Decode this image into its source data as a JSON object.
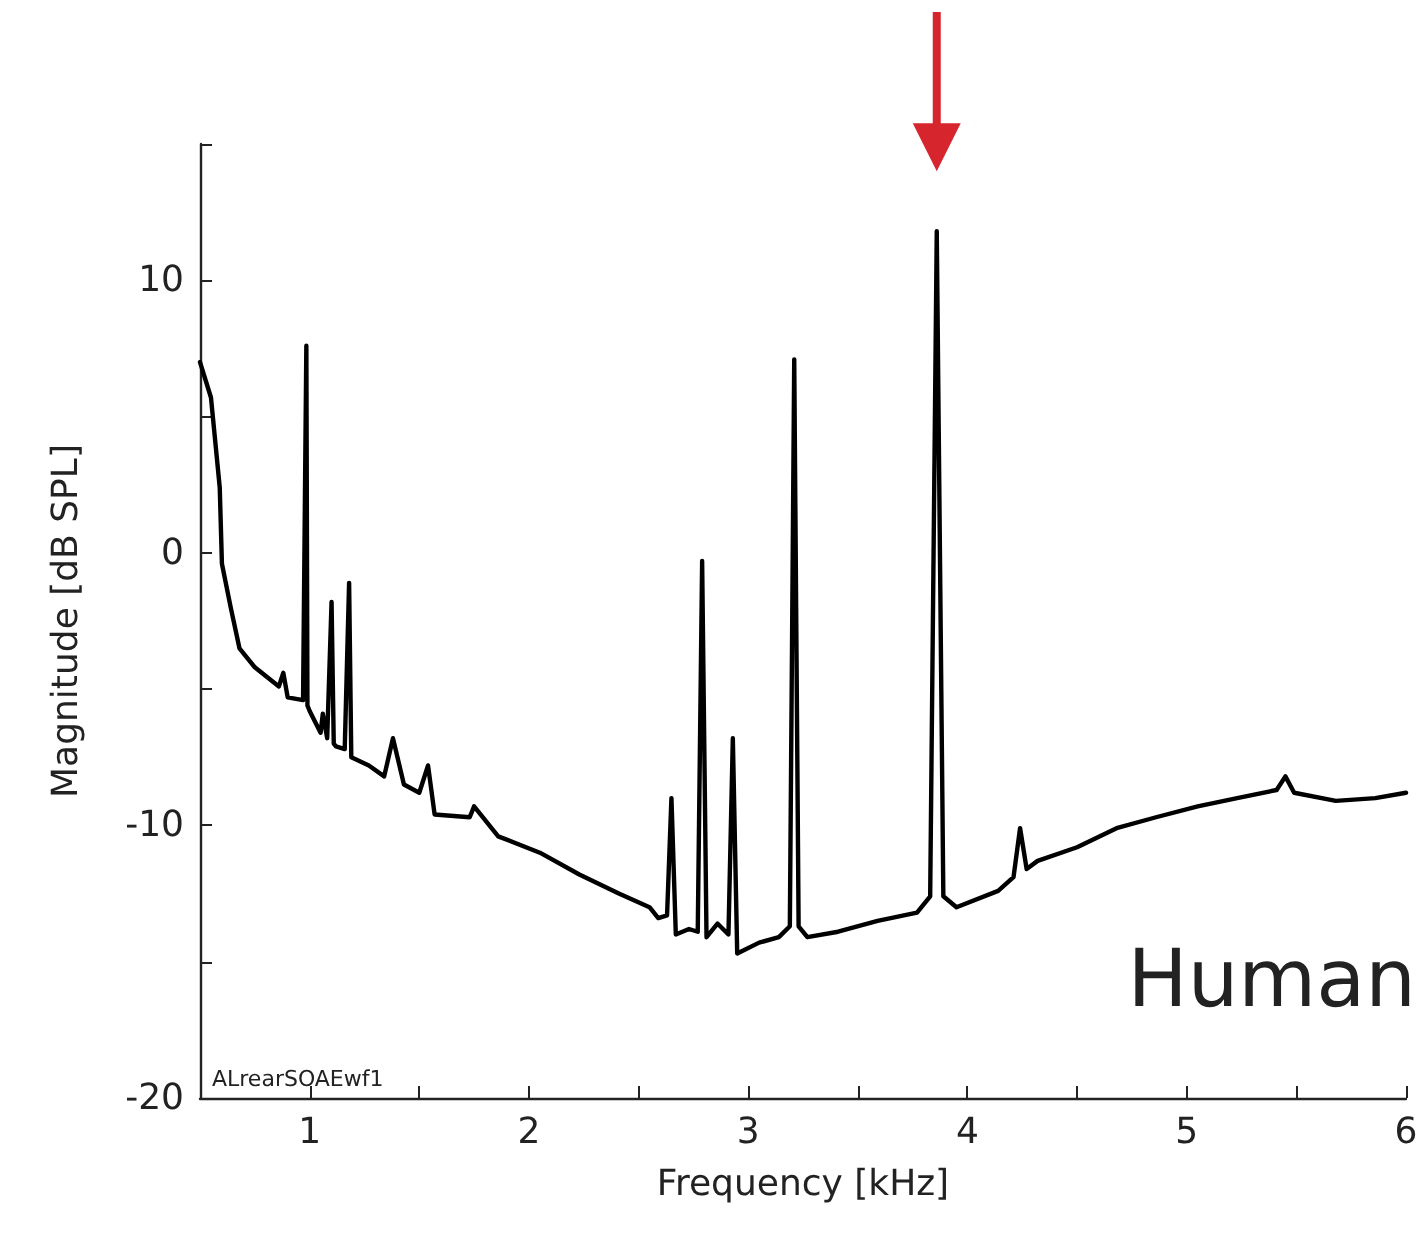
{
  "chart_data": {
    "type": "line",
    "xlabel": "Frequency [kHz]",
    "ylabel": "Magnitude [dB SPL]",
    "annotations": [
      "ALrearSOAEwf1",
      "Human"
    ],
    "xlim": [
      0.5,
      6
    ],
    "ylim": [
      -20,
      15
    ],
    "xticks": [
      1,
      {
        "value": 1.5,
        "label": null
      },
      2,
      {
        "value": 2.5,
        "label": null
      },
      3,
      {
        "value": 3.5,
        "label": null
      },
      4,
      {
        "value": 4.5,
        "label": null
      },
      5,
      {
        "value": 5.5,
        "label": null
      },
      6
    ],
    "yticks": [
      -20,
      {
        "value": -15,
        "label": null
      },
      -10,
      {
        "value": -5,
        "label": null
      },
      0,
      {
        "value": 5,
        "label": null
      },
      10,
      {
        "value": 15,
        "label": null
      }
    ],
    "grid": false,
    "marker": "none",
    "line_style": "solid",
    "series": [
      {
        "color": "#000000",
        "x": [
          0.5,
          0.55,
          0.59,
          0.6,
          0.64,
          0.68,
          0.75,
          0.86,
          0.88,
          0.9,
          0.97,
          0.985,
          0.99,
          1.0,
          1.05,
          1.06,
          1.08,
          1.1,
          1.11,
          1.12,
          1.16,
          1.18,
          1.19,
          1.27,
          1.34,
          1.38,
          1.43,
          1.5,
          1.54,
          1.57,
          1.73,
          1.75,
          1.86,
          2.05,
          2.23,
          2.41,
          2.55,
          2.59,
          2.63,
          2.65,
          2.67,
          2.73,
          2.77,
          2.79,
          2.81,
          2.86,
          2.91,
          2.93,
          2.95,
          3.05,
          3.14,
          3.19,
          3.21,
          3.23,
          3.27,
          3.41,
          3.59,
          3.77,
          3.83,
          3.86,
          3.89,
          3.95,
          4.14,
          4.21,
          4.24,
          4.27,
          4.32,
          4.5,
          4.68,
          4.86,
          5.05,
          5.23,
          5.41,
          5.45,
          5.49,
          5.68,
          5.86,
          6.0
        ],
        "values": [
          7.0,
          5.7,
          2.4,
          -0.4,
          -2.0,
          -3.5,
          -4.2,
          -4.9,
          -4.4,
          -5.3,
          -5.4,
          7.6,
          -5.6,
          -5.8,
          -6.6,
          -5.9,
          -6.8,
          -1.8,
          -7.0,
          -7.1,
          -7.2,
          -1.1,
          -7.5,
          -7.8,
          -8.2,
          -6.8,
          -8.5,
          -8.8,
          -7.8,
          -9.6,
          -9.7,
          -9.3,
          -10.4,
          -11.0,
          -11.8,
          -12.5,
          -13.0,
          -13.4,
          -13.3,
          -9.0,
          -14.0,
          -13.8,
          -13.9,
          -0.3,
          -14.1,
          -13.6,
          -14.0,
          -6.8,
          -14.7,
          -14.3,
          -14.1,
          -13.7,
          7.1,
          -13.7,
          -14.1,
          -13.9,
          -13.5,
          -13.2,
          -12.6,
          11.8,
          -12.6,
          -13.0,
          -12.4,
          -11.9,
          -10.1,
          -11.6,
          -11.3,
          -10.8,
          -10.1,
          -9.7,
          -9.3,
          -9.0,
          -8.7,
          -8.2,
          -8.8,
          -9.1,
          -9.0,
          -8.8
        ]
      }
    ]
  }
}
